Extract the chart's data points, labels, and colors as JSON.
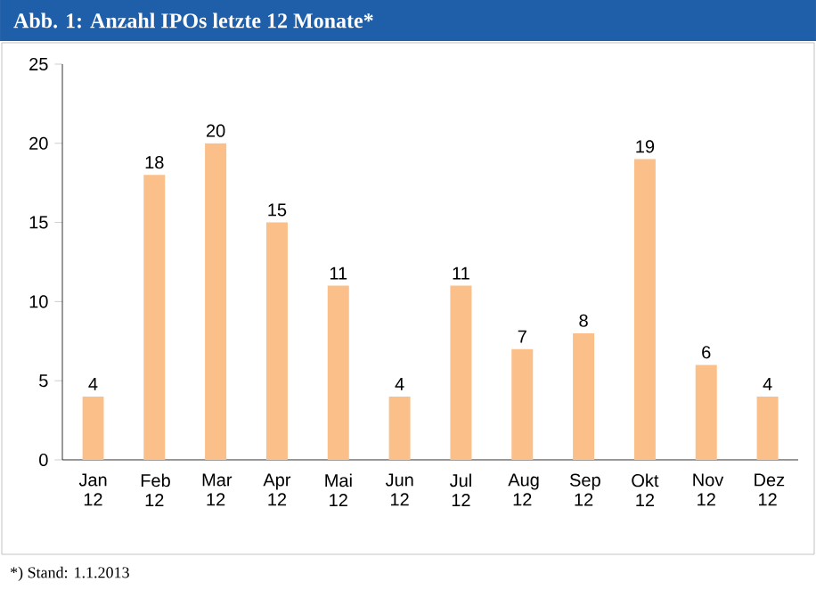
{
  "chart_data": {
    "type": "bar",
    "title": "Abb. 1: Anzahl IPOs letzte 12 Monate*",
    "categories": [
      "Jan 12",
      "Feb 12",
      "Mar 12",
      "Apr 12",
      "Mai 12",
      "Jun 12",
      "Jul 12",
      "Aug 12",
      "Sep 12",
      "Okt 12",
      "Nov 12",
      "Dez 12"
    ],
    "values": [
      4,
      18,
      20,
      15,
      11,
      4,
      11,
      7,
      8,
      19,
      6,
      4
    ],
    "color": "#fbbf8a",
    "ylim": [
      0,
      25
    ],
    "yticks": [
      0,
      5,
      10,
      15,
      20,
      25
    ],
    "data_labels": true,
    "grid": false,
    "annotations": [
      "*) Stand: 1.1.2013"
    ]
  }
}
